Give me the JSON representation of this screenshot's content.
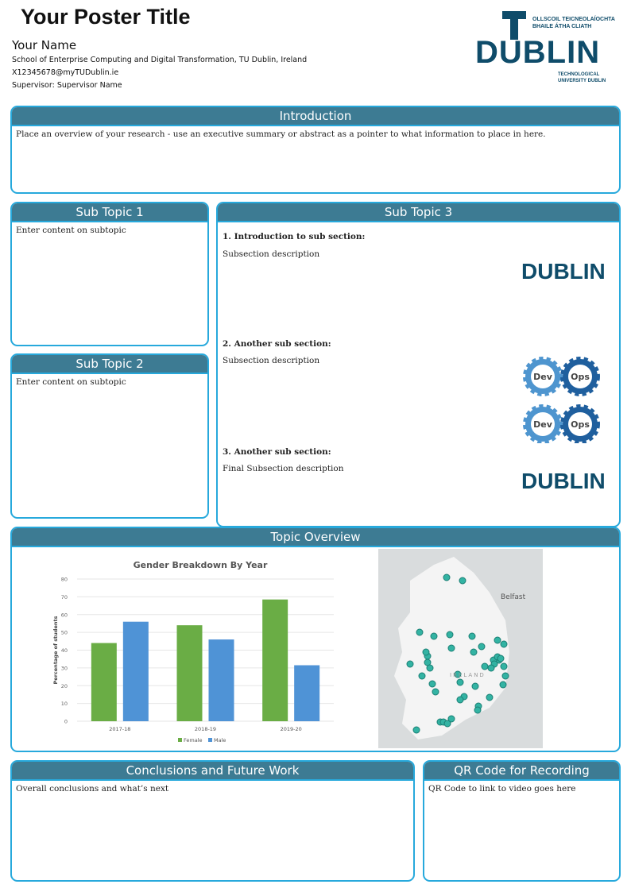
{
  "header": {
    "title": "Your Poster Title",
    "name": "Your Name",
    "school": "School of Enterprise Computing and Digital Transformation, TU Dublin, Ireland",
    "email": "X12345678@myTUDublin.ie",
    "supervisor": "Supervisor: Supervisor Name"
  },
  "logo": {
    "text": "DUBLIN",
    "line1": "OLLSCOIL TEICNEOLAÍOCHTA",
    "line2": "BHAILE ÁTHA CLIATH",
    "line3": "TECHNOLOGICAL",
    "line4": "UNIVERSITY DUBLIN",
    "color": "#0f4c6a"
  },
  "colors": {
    "border": "#27a9dc",
    "header": "#3d7b93"
  },
  "intro": {
    "title": "Introduction",
    "text": "Place an overview of your research - use an executive summary or abstract as a pointer to what information to place in here."
  },
  "sub1": {
    "title": "Sub Topic 1",
    "text": "Enter content on subtopic"
  },
  "sub2": {
    "title": "Sub Topic 2",
    "text": "Enter content on subtopic"
  },
  "sub3": {
    "title": "Sub Topic 3",
    "sections": [
      {
        "heading": "1.  Introduction to sub section:",
        "text": "Subsection description"
      },
      {
        "heading": "2.  Another sub section:",
        "text": "Subsection description"
      },
      {
        "heading": "3.  Another sub section:",
        "text": "Final Subsection description"
      }
    ],
    "devops": {
      "dev": "Dev",
      "ops": "Ops"
    }
  },
  "overview": {
    "title": "Topic Overview",
    "map": {
      "belfast": "Belfast",
      "ireland": "IRELAND"
    }
  },
  "conclusions": {
    "title": "Conclusions and Future Work",
    "text": "Overall conclusions and what’s next"
  },
  "qr": {
    "title": "QR Code for Recording",
    "text": "QR Code to link to video goes here"
  },
  "chart_data": {
    "type": "bar",
    "title": "Gender Breakdown By Year",
    "xlabel": "",
    "ylabel": "Percentage of students",
    "ylim": [
      0,
      80
    ],
    "yticks": [
      0,
      10,
      20,
      30,
      40,
      50,
      60,
      70,
      80
    ],
    "grid": true,
    "legend": "bottom",
    "categories": [
      "2017-18",
      "2018-19",
      "2019-20"
    ],
    "series": [
      {
        "name": "Female",
        "color": "#6aad45",
        "values": [
          44,
          54,
          68.5
        ]
      },
      {
        "name": "Male",
        "color": "#4f93d6",
        "values": [
          56,
          46,
          31.5
        ]
      }
    ]
  }
}
